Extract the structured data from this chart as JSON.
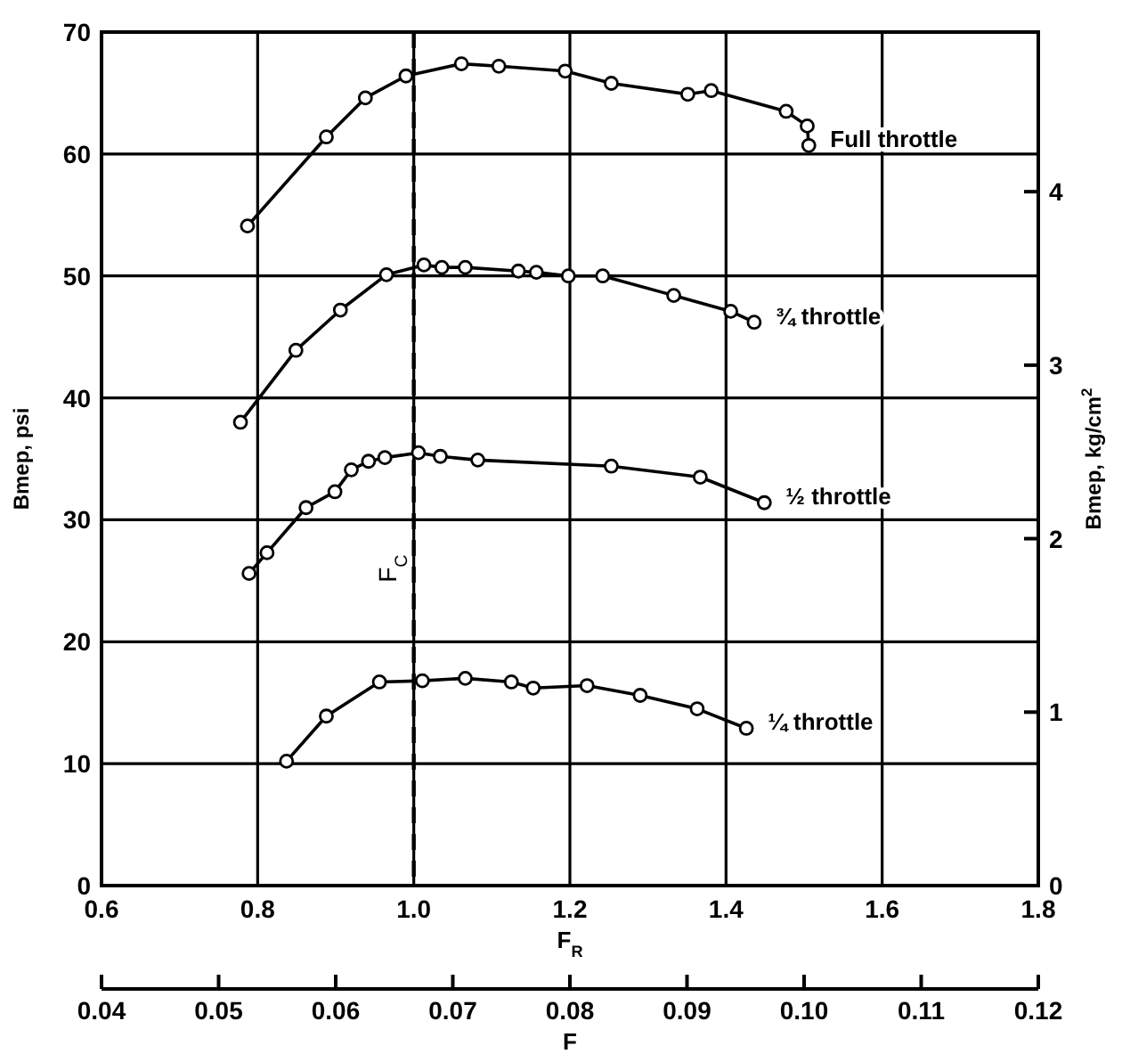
{
  "chart_data": {
    "type": "line",
    "xlabel": "F$_{R}$",
    "ylabel": "Bmep, psi",
    "y2label": "Bmep, kg/cm$^{2}$",
    "x2label": "F",
    "xlim": [
      0.6,
      1.8
    ],
    "xticks": [
      {
        "value": 0.6,
        "label": "0.6"
      },
      {
        "value": 0.8,
        "label": "0.8"
      },
      {
        "value": 1.0,
        "label": "1.0"
      },
      {
        "value": 1.2,
        "label": "1.2"
      },
      {
        "value": 1.4,
        "label": "1.4"
      },
      {
        "value": 1.6,
        "label": "1.6"
      },
      {
        "value": 1.8,
        "label": "1.8"
      }
    ],
    "ylim": [
      0,
      70
    ],
    "yticks": [
      0,
      10,
      20,
      30,
      40,
      50,
      60,
      70
    ],
    "y2lim": [
      0,
      4.92
    ],
    "y2ticks": [
      0,
      1,
      2,
      3,
      4
    ],
    "x2lim": [
      0.04,
      0.12
    ],
    "x2ticks": [
      {
        "value": 0.04,
        "label": "0.04"
      },
      {
        "value": 0.05,
        "label": "0.05"
      },
      {
        "value": 0.06,
        "label": "0.06"
      },
      {
        "value": 0.07,
        "label": "0.07"
      },
      {
        "value": 0.08,
        "label": "0.08"
      },
      {
        "value": 0.09,
        "label": "0.09"
      },
      {
        "value": 0.1,
        "label": "0.10"
      },
      {
        "value": 0.11,
        "label": "0.11"
      },
      {
        "value": 0.12,
        "label": "0.12"
      }
    ],
    "grid": true,
    "legend": false,
    "marker": "circle",
    "line_style": "solid",
    "ref_lines": [
      {
        "axis": "x",
        "value": 1.0,
        "label": "F$_{C}$",
        "line_style": "dashed",
        "color": "#000000"
      }
    ],
    "series": [
      {
        "name": "Full throttle",
        "color": "#000000",
        "x": [
          0.787,
          0.888,
          0.938,
          0.99,
          1.061,
          1.109,
          1.194,
          1.253,
          1.351,
          1.381,
          1.477,
          1.504,
          1.506
        ],
        "values": [
          54.1,
          61.4,
          64.6,
          66.4,
          67.4,
          67.2,
          66.8,
          65.8,
          64.9,
          65.2,
          63.5,
          62.3,
          60.7
        ]
      },
      {
        "name": "¾ throttle",
        "color": "#000000",
        "x": [
          0.778,
          0.849,
          0.906,
          0.965,
          1.013,
          1.036,
          1.066,
          1.134,
          1.157,
          1.198,
          1.242,
          1.333,
          1.406,
          1.436
        ],
        "values": [
          38.0,
          43.9,
          47.2,
          50.1,
          50.9,
          50.7,
          50.7,
          50.4,
          50.3,
          50.0,
          50.0,
          48.4,
          47.1,
          46.2
        ]
      },
      {
        "name": "½ throttle",
        "color": "#000000",
        "x": [
          0.789,
          0.812,
          0.862,
          0.899,
          0.92,
          0.942,
          0.963,
          1.006,
          1.034,
          1.082,
          1.253,
          1.367,
          1.449
        ],
        "values": [
          25.6,
          27.3,
          31.0,
          32.3,
          34.1,
          34.8,
          35.1,
          35.5,
          35.2,
          34.9,
          34.4,
          33.5,
          31.4
        ]
      },
      {
        "name": "¼ throttle",
        "color": "#000000",
        "x": [
          0.837,
          0.888,
          0.956,
          1.011,
          1.066,
          1.125,
          1.153,
          1.222,
          1.29,
          1.363,
          1.426
        ],
        "values": [
          10.2,
          13.9,
          16.7,
          16.8,
          17.0,
          16.7,
          16.2,
          16.4,
          15.6,
          14.5,
          12.9
        ]
      }
    ]
  }
}
